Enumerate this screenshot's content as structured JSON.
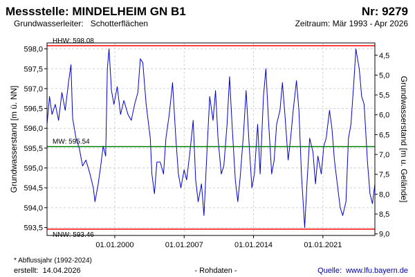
{
  "chart_data": {
    "type": "line",
    "title": "Messstelle: MINDELHEIM GN B1",
    "number": "Nr: 9279",
    "subtitle": "Grundwasserleiter:   Schotterflächen",
    "period": "Zeitraum: Mär 1993 - Apr 2026",
    "y_label": "Grundwasserstand [m ü. NN]",
    "y2_label": "Grundwasserstand [m u. Gelände]",
    "footnote": "* Abflussjahr (1992-2024)",
    "created": "erstellt:  14.04.2026",
    "data_kind": "- Rohdaten -",
    "source": "Quelle:  www.lfu.bayern.de",
    "grid": true,
    "xlim": [
      "1993-03-01",
      "2026-04-01"
    ],
    "xticks": [
      {
        "value": "2000-01-01",
        "label": "01.01.2000"
      },
      {
        "value": "2007-01-01",
        "label": "01.01.2007"
      },
      {
        "value": "2014-01-01",
        "label": "01.01.2014"
      },
      {
        "value": "2021-01-01",
        "label": "01.01.2021"
      }
    ],
    "ylim": [
      593.3,
      598.15
    ],
    "yticks": [
      {
        "value": 593.5,
        "label": "593,5"
      },
      {
        "value": 594.0,
        "label": "594,0"
      },
      {
        "value": 594.5,
        "label": "594,5"
      },
      {
        "value": 595.0,
        "label": "595,0"
      },
      {
        "value": 595.5,
        "label": "595,5"
      },
      {
        "value": 596.0,
        "label": "596,0"
      },
      {
        "value": 596.5,
        "label": "596,5"
      },
      {
        "value": 597.0,
        "label": "597,0"
      },
      {
        "value": 597.5,
        "label": "597,5"
      },
      {
        "value": 598.0,
        "label": "598,0"
      }
    ],
    "y2lim": [
      9.04,
      4.19
    ],
    "y2ticks": [
      {
        "value": 4.5,
        "label": "4,5"
      },
      {
        "value": 5.0,
        "label": "5,0"
      },
      {
        "value": 5.5,
        "label": "5,5"
      },
      {
        "value": 6.0,
        "label": "6,0"
      },
      {
        "value": 6.5,
        "label": "6,5"
      },
      {
        "value": 7.0,
        "label": "7,0"
      },
      {
        "value": 7.5,
        "label": "7,5"
      },
      {
        "value": 8.0,
        "label": "8,0"
      },
      {
        "value": 8.5,
        "label": "8,5"
      },
      {
        "value": 9.0,
        "label": "9,0"
      }
    ],
    "reference_lines": [
      {
        "value": 598.08,
        "label": "HHW: 598.08",
        "color": "#ff0000"
      },
      {
        "value": 595.54,
        "label": "MW: 595.54",
        "color": "#008000"
      },
      {
        "value": 593.46,
        "label": "NNW: 593.46",
        "color": "#ff0000"
      }
    ],
    "x": [
      "1993-03-01",
      "1993-06-01",
      "1993-09-01",
      "1994-01-01",
      "1994-05-01",
      "1994-09-01",
      "1995-01-01",
      "1995-05-01",
      "1995-08-01",
      "1995-10-01",
      "1996-02-01",
      "1996-06-01",
      "1996-10-01",
      "1997-02-01",
      "1997-07-01",
      "1997-11-01",
      "1998-01-01",
      "1998-05-01",
      "1998-08-01",
      "1998-11-01",
      "1999-02-01",
      "1999-04-01",
      "1999-06-01",
      "1999-09-01",
      "1999-12-01",
      "2000-04-01",
      "2000-08-01",
      "2000-12-01",
      "2001-05-01",
      "2001-09-01",
      "2002-01-01",
      "2002-05-01",
      "2002-08-01",
      "2002-11-01",
      "2003-03-01",
      "2003-08-01",
      "2003-10-01",
      "2004-01-01",
      "2004-04-01",
      "2004-08-01",
      "2004-12-01",
      "2005-03-01",
      "2005-07-01",
      "2005-11-01",
      "2006-03-01",
      "2006-06-01",
      "2006-09-01",
      "2007-01-01",
      "2007-04-01",
      "2007-08-01",
      "2007-12-01",
      "2008-03-01",
      "2008-06-01",
      "2008-10-01",
      "2009-01-01",
      "2009-05-01",
      "2009-08-01",
      "2009-12-01",
      "2010-03-01",
      "2010-06-01",
      "2010-10-01",
      "2011-01-01",
      "2011-05-01",
      "2011-08-01",
      "2011-11-01",
      "2012-03-01",
      "2012-06-01",
      "2012-09-01",
      "2013-01-01",
      "2013-04-01",
      "2013-08-01",
      "2013-11-01",
      "2014-02-01",
      "2014-06-01",
      "2014-09-01",
      "2015-01-01",
      "2015-04-01",
      "2015-07-01",
      "2015-11-01",
      "2016-02-01",
      "2016-05-01",
      "2016-09-01",
      "2016-12-01",
      "2017-03-01",
      "2017-07-01",
      "2017-10-01",
      "2018-01-01",
      "2018-05-01",
      "2018-08-01",
      "2018-11-01",
      "2019-03-01",
      "2019-06-01",
      "2019-09-01",
      "2020-01-01",
      "2020-04-01",
      "2020-07-01",
      "2020-11-01",
      "2021-02-01",
      "2021-05-01",
      "2021-09-01",
      "2021-12-01",
      "2022-03-01",
      "2022-07-01",
      "2022-10-01",
      "2023-01-01",
      "2023-05-01",
      "2023-08-01",
      "2023-11-01",
      "2024-03-01",
      "2024-05-01",
      "2024-09-01",
      "2024-12-01",
      "2025-03-01",
      "2025-07-01",
      "2025-10-01",
      "2026-01-01",
      "2026-04-01"
    ],
    "series": [
      {
        "name": "Grundwasserstand",
        "color": "#0000cc",
        "values": [
          596.1,
          596.8,
          596.35,
          596.6,
          596.2,
          596.9,
          596.45,
          597.15,
          597.6,
          596.25,
          595.75,
          595.5,
          595.05,
          595.2,
          594.85,
          594.5,
          594.15,
          594.6,
          595.05,
          595.55,
          595.3,
          597.5,
          598.0,
          596.95,
          596.6,
          597.05,
          596.35,
          596.7,
          596.35,
          596.2,
          596.6,
          596.9,
          597.75,
          597.65,
          596.6,
          595.75,
          594.85,
          594.35,
          595.15,
          595.15,
          594.85,
          595.75,
          596.35,
          597.15,
          595.75,
          594.85,
          594.5,
          594.95,
          594.7,
          595.4,
          596.2,
          594.7,
          594.15,
          594.6,
          593.8,
          595.55,
          596.8,
          596.2,
          596.95,
          595.75,
          594.85,
          595.05,
          596.1,
          597.3,
          596.1,
          594.7,
          594.15,
          594.8,
          595.9,
          596.95,
          595.5,
          594.5,
          594.85,
          596.1,
          594.85,
          596.8,
          597.5,
          596.25,
          594.85,
          595.2,
          596.1,
          596.45,
          597.15,
          596.35,
          595.2,
          595.75,
          596.45,
          597.2,
          596.45,
          594.85,
          593.5,
          594.7,
          595.75,
          595.4,
          594.6,
          595.3,
          594.85,
          595.55,
          595.75,
          596.45,
          596.0,
          595.2,
          594.5,
          594.0,
          593.8,
          594.15,
          595.75,
          596.1,
          597.3,
          598.0,
          597.5,
          596.8,
          596.6,
          595.15,
          594.35,
          594.1,
          594.6
        ]
      }
    ]
  }
}
